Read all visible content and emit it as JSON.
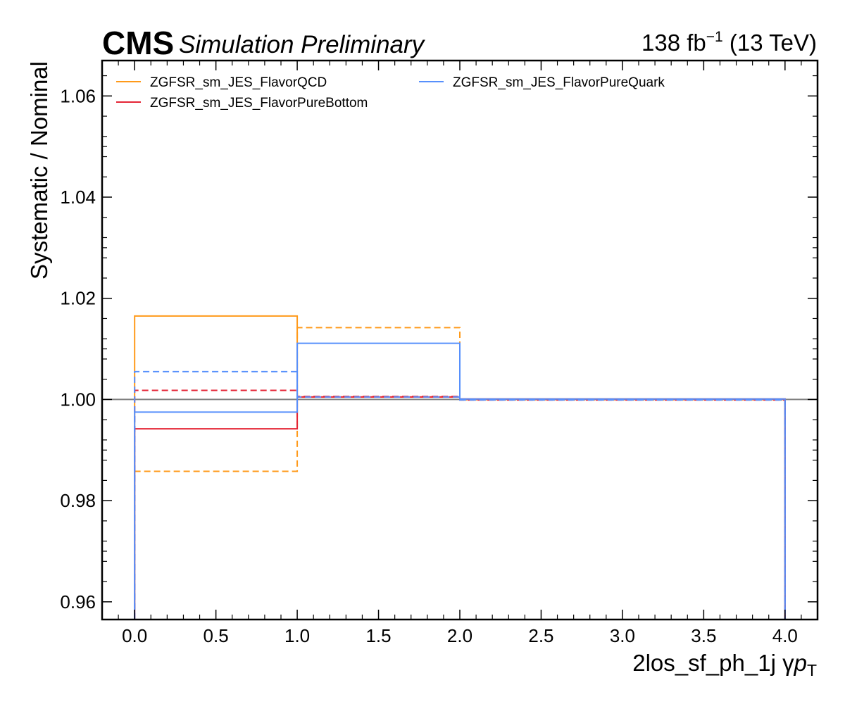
{
  "header": {
    "cms": "CMS",
    "simulation": "Simulation Preliminary",
    "lumi_prefix": "138 fb",
    "lumi_exp": "−1",
    "lumi_suffix": " (13 TeV)"
  },
  "chart_data": {
    "type": "line",
    "title": "",
    "xlabel_main": "2los_sf_ph_1j   γ",
    "xlabel_p": "p",
    "xlabel_sub": "T",
    "ylabel": "Systematic / Nominal",
    "xlim": [
      -0.2,
      4.2
    ],
    "ylim": [
      0.9565,
      1.067
    ],
    "x_ticks": [
      0.0,
      0.5,
      1.0,
      1.5,
      2.0,
      2.5,
      3.0,
      3.5,
      4.0
    ],
    "x_tick_labels": [
      "0.0",
      "0.5",
      "1.0",
      "1.5",
      "2.0",
      "2.5",
      "3.0",
      "3.5",
      "4.0"
    ],
    "y_ticks": [
      0.96,
      0.98,
      1.0,
      1.02,
      1.04,
      1.06
    ],
    "y_tick_labels": [
      "0.96",
      "0.98",
      "1.00",
      "1.02",
      "1.04",
      "1.06"
    ],
    "bin_edges": [
      0,
      1,
      2,
      3,
      4
    ],
    "reference_line": 1.0,
    "grid": false,
    "legend_placement": "top-left, two columns",
    "series": [
      {
        "name": "ZGFSR_sm_JES_FlavorQCD",
        "color": "#ff9a1a",
        "style": "solid",
        "values": [
          1.0165,
          1.0005,
          1.0001,
          1.0001
        ]
      },
      {
        "name": "",
        "color": "#ff9a1a",
        "style": "dashed",
        "values": [
          0.9858,
          1.0142,
          0.9999,
          0.9999
        ]
      },
      {
        "name": "ZGFSR_sm_JES_FlavorPureBottom",
        "color": "#e42536",
        "style": "solid",
        "values": [
          0.9942,
          1.0005,
          1.0001,
          1.0001
        ]
      },
      {
        "name": "",
        "color": "#e42536",
        "style": "dashed",
        "values": [
          1.0018,
          1.0006,
          0.9999,
          0.9999
        ]
      },
      {
        "name": "ZGFSR_sm_JES_FlavorPureQuark",
        "color": "#5790fc",
        "style": "solid",
        "values": [
          0.9975,
          1.0111,
          1.0001,
          1.0001
        ]
      },
      {
        "name": "",
        "color": "#5790fc",
        "style": "dashed",
        "values": [
          1.0055,
          1.0005,
          0.9999,
          0.9999
        ]
      }
    ],
    "legend": [
      {
        "label": "ZGFSR_sm_JES_FlavorQCD",
        "color": "#ff9a1a"
      },
      {
        "label": "ZGFSR_sm_JES_FlavorPureBottom",
        "color": "#e42536"
      },
      {
        "label": "ZGFSR_sm_JES_FlavorPureQuark",
        "color": "#5790fc"
      }
    ]
  }
}
